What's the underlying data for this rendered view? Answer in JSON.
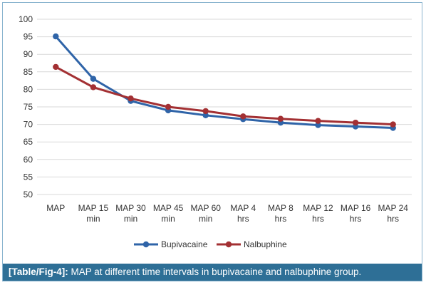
{
  "chart_data": {
    "type": "line",
    "categories": [
      [
        "MAP"
      ],
      [
        "MAP 15",
        "min"
      ],
      [
        "MAP 30",
        "min"
      ],
      [
        "MAP 45",
        "min"
      ],
      [
        "MAP 60",
        "min"
      ],
      [
        "MAP 4",
        "hrs"
      ],
      [
        "MAP 8",
        "hrs"
      ],
      [
        "MAP 12",
        "hrs"
      ],
      [
        "MAP 16",
        "hrs"
      ],
      [
        "MAP 24",
        "hrs"
      ]
    ],
    "series": [
      {
        "name": "Bupivacaine",
        "color": "#2f64a8",
        "values": [
          95.1,
          83.0,
          76.7,
          74.0,
          72.6,
          71.5,
          70.5,
          69.8,
          69.4,
          69.0
        ]
      },
      {
        "name": "Nalbuphine",
        "color": "#a33033",
        "values": [
          86.4,
          80.6,
          77.4,
          75.0,
          73.8,
          72.3,
          71.6,
          71.0,
          70.5,
          70.0
        ]
      }
    ],
    "ylim": [
      50,
      100
    ],
    "yticks": [
      50,
      55,
      60,
      65,
      70,
      75,
      80,
      85,
      90,
      95,
      100
    ],
    "grid": true,
    "legend_position": "bottom-center"
  },
  "caption": {
    "label": "[Table/Fig-4]:",
    "text": "MAP at different time intervals in bupivacaine and nalbuphine group."
  }
}
